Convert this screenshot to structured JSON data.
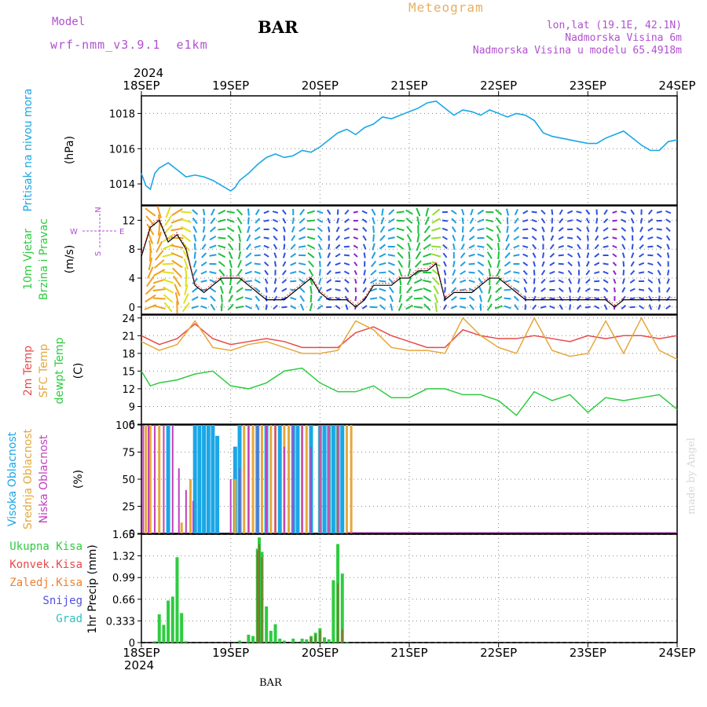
{
  "header": {
    "model_label": "Model",
    "model_name": "wrf-nmm_v3.9.1  e1km",
    "station": "BAR",
    "title": "Meteogram",
    "coords": "lon,lat (19.1E, 42.1N)",
    "elevation": "Nadmorska Visina 6m",
    "model_elevation": "Nadmorska Visina u modelu 65.4918m",
    "year": "2024",
    "footer_station": "BAR",
    "watermark": "made by Angel"
  },
  "colors": {
    "pressure": "#1aa7e6",
    "t2m": "#e84a4a",
    "sfc": "#e6a83a",
    "dewpt": "#2ecc40",
    "high_cloud": "#1aa7e6",
    "mid_cloud": "#e6a83a",
    "low_cloud": "#c040c0",
    "precip_total": "#2ecc40",
    "precip_conv": "#e84a4a",
    "header_purple": "#b050d0",
    "title_orange": "#e6b060",
    "wind_label": "#2ecc40"
  },
  "chart_data": [
    {
      "type": "line",
      "panel": "pressure",
      "ylabel_name": "Pritisak na nivou mora",
      "ylabel_unit": "(hPa)",
      "x_ticks": [
        "18SEP",
        "19SEP",
        "20SEP",
        "21SEP",
        "22SEP",
        "23SEP",
        "24SEP"
      ],
      "ylim": [
        1012.8,
        1019.0
      ],
      "yticks": [
        1014,
        1016,
        1018
      ],
      "grid": true,
      "series": [
        {
          "name": "Pritisak na nivou mora",
          "x_days": [
            0,
            0.05,
            0.1,
            0.15,
            0.2,
            0.3,
            0.4,
            0.5,
            0.6,
            0.7,
            0.8,
            0.9,
            1.0,
            1.05,
            1.1,
            1.2,
            1.3,
            1.4,
            1.5,
            1.6,
            1.7,
            1.8,
            1.9,
            2.0,
            2.1,
            2.2,
            2.3,
            2.4,
            2.5,
            2.6,
            2.7,
            2.8,
            2.9,
            3.0,
            3.1,
            3.2,
            3.3,
            3.4,
            3.5,
            3.6,
            3.7,
            3.8,
            3.9,
            4.0,
            4.1,
            4.2,
            4.3,
            4.4,
            4.5,
            4.6,
            4.7,
            4.8,
            4.9,
            5.0,
            5.1,
            5.2,
            5.3,
            5.4,
            5.5,
            5.6,
            5.7,
            5.8,
            5.9,
            6.0
          ],
          "values": [
            1014.6,
            1013.9,
            1013.7,
            1014.6,
            1014.9,
            1015.2,
            1014.8,
            1014.4,
            1014.5,
            1014.4,
            1014.2,
            1013.9,
            1013.6,
            1013.8,
            1014.2,
            1014.6,
            1015.1,
            1015.5,
            1015.7,
            1015.5,
            1015.6,
            1015.9,
            1015.8,
            1016.1,
            1016.5,
            1016.9,
            1017.1,
            1016.8,
            1017.2,
            1017.4,
            1017.8,
            1017.7,
            1017.9,
            1018.1,
            1018.3,
            1018.6,
            1018.7,
            1018.3,
            1017.9,
            1018.2,
            1018.1,
            1017.9,
            1018.2,
            1018.0,
            1017.8,
            1018.0,
            1017.9,
            1017.6,
            1016.9,
            1016.7,
            1016.6,
            1016.5,
            1016.4,
            1016.3,
            1016.3,
            1016.6,
            1016.8,
            1017.0,
            1016.6,
            1016.2,
            1015.9,
            1015.9,
            1016.4,
            1016.5
          ]
        }
      ]
    },
    {
      "type": "scatter",
      "panel": "wind",
      "ylabel_name": "10m Vjetar Brzina i Pravac",
      "ylabel_unit": "(m/s)",
      "compass": {
        "n": "N",
        "s": "S",
        "e": "E",
        "w": "W"
      },
      "ylim": [
        -1,
        14
      ],
      "yticks": [
        0,
        4,
        8,
        12
      ],
      "grid": true,
      "series": [
        {
          "name": "speed",
          "x_days": [
            0,
            0.1,
            0.2,
            0.3,
            0.4,
            0.5,
            0.6,
            0.7,
            0.8,
            0.9,
            1.0,
            1.1,
            1.2,
            1.3,
            1.4,
            1.5,
            1.6,
            1.7,
            1.8,
            1.9,
            2.0,
            2.1,
            2.2,
            2.3,
            2.4,
            2.5,
            2.6,
            2.7,
            2.8,
            2.9,
            3.0,
            3.1,
            3.2,
            3.3,
            3.4,
            3.5,
            3.6,
            3.7,
            3.8,
            3.9,
            4.0,
            4.1,
            4.2,
            4.3,
            4.4,
            4.5,
            4.6,
            4.7,
            4.8,
            4.9,
            5.0,
            5.1,
            5.2,
            5.3,
            5.4,
            5.5,
            5.6,
            5.7,
            5.8,
            5.9,
            6.0
          ],
          "values": [
            7,
            11,
            12,
            9,
            10,
            8,
            3,
            2,
            3,
            4,
            4,
            4,
            3,
            2,
            1,
            1,
            1,
            2,
            3,
            4,
            2,
            1,
            1,
            1,
            0,
            1,
            3,
            3,
            3,
            4,
            4,
            5,
            5,
            6,
            1,
            2,
            2,
            2,
            3,
            4,
            4,
            3,
            2,
            1,
            1,
            1,
            1,
            1,
            1,
            1,
            1,
            1,
            1,
            0,
            1,
            1,
            1,
            1,
            1,
            1,
            1
          ]
        }
      ]
    },
    {
      "type": "line",
      "panel": "temperature",
      "ylabel_t2m": "2m Temp",
      "ylabel_sfc": "SFC Temp",
      "ylabel_dew": "dewpt Temp",
      "ylabel_unit": "(C)",
      "ylim": [
        6,
        24.5
      ],
      "yticks": [
        6,
        9,
        12,
        15,
        18,
        21,
        24
      ],
      "grid": true,
      "series": [
        {
          "name": "2m Temp",
          "x_days": [
            0,
            0.2,
            0.4,
            0.6,
            0.8,
            1.0,
            1.2,
            1.4,
            1.6,
            1.8,
            2.0,
            2.2,
            2.4,
            2.6,
            2.8,
            3.0,
            3.2,
            3.4,
            3.6,
            3.8,
            4.0,
            4.2,
            4.4,
            4.6,
            4.8,
            5.0,
            5.2,
            5.4,
            5.6,
            5.8,
            6.0
          ],
          "values": [
            21,
            19.5,
            20.5,
            23,
            20.5,
            19.5,
            20,
            20.5,
            20,
            19,
            19,
            19,
            21.5,
            22.5,
            21,
            20,
            19,
            19,
            22,
            21,
            20.5,
            20.5,
            21,
            20.5,
            20,
            21,
            20.5,
            21,
            21,
            20.5,
            21
          ]
        },
        {
          "name": "SFC Temp",
          "x_days": [
            0,
            0.2,
            0.4,
            0.6,
            0.8,
            1.0,
            1.2,
            1.4,
            1.6,
            1.8,
            2.0,
            2.2,
            2.4,
            2.6,
            2.8,
            3.0,
            3.2,
            3.4,
            3.6,
            3.8,
            4.0,
            4.2,
            4.4,
            4.6,
            4.8,
            5.0,
            5.2,
            5.4,
            5.6,
            5.8,
            6.0
          ],
          "values": [
            20,
            18.5,
            19.5,
            23.5,
            19,
            18.5,
            19.5,
            20,
            19,
            18,
            18,
            18.5,
            23.5,
            22,
            19,
            18.5,
            18.5,
            18,
            24,
            21,
            19,
            18,
            24,
            18.5,
            17.5,
            18,
            23.5,
            18,
            24,
            18.5,
            17
          ]
        },
        {
          "name": "dewpt Temp",
          "x_days": [
            0,
            0.1,
            0.2,
            0.4,
            0.6,
            0.8,
            1.0,
            1.2,
            1.4,
            1.6,
            1.8,
            2.0,
            2.2,
            2.4,
            2.6,
            2.8,
            3.0,
            3.2,
            3.4,
            3.6,
            3.8,
            4.0,
            4.2,
            4.4,
            4.6,
            4.8,
            5.0,
            5.2,
            5.4,
            5.6,
            5.8,
            6.0
          ],
          "values": [
            15,
            12.5,
            13,
            13.5,
            14.5,
            15,
            12.5,
            12,
            13,
            15,
            15.5,
            13,
            11.5,
            11.5,
            12.5,
            10.5,
            10.5,
            12,
            12,
            11,
            11,
            10,
            7.5,
            11.5,
            10,
            11,
            8,
            10.5,
            10,
            10.5,
            11,
            8.5
          ]
        }
      ]
    },
    {
      "type": "bar",
      "panel": "cloud",
      "ylabel_high": "Visoka Oblacnost",
      "ylabel_mid": "Srednja Oblacnost",
      "ylabel_low": "Niska Oblacnost",
      "ylabel_unit": "(%)",
      "ylim": [
        0,
        100
      ],
      "yticks": [
        0,
        25,
        50,
        75,
        100
      ],
      "grid": true,
      "series": [
        {
          "name": "Visoka Oblacnost",
          "x_days": [
            0.3,
            0.6,
            0.65,
            0.7,
            0.75,
            0.8,
            0.85,
            1.05,
            1.1,
            1.3,
            1.4,
            1.55,
            1.7,
            1.75,
            1.9,
            2.0,
            2.05,
            2.1,
            2.15,
            2.2,
            2.25
          ],
          "values": [
            100,
            100,
            100,
            100,
            100,
            100,
            90,
            80,
            100,
            100,
            100,
            100,
            100,
            100,
            100,
            100,
            100,
            100,
            100,
            100,
            100
          ]
        },
        {
          "name": "Srednja Oblacnost",
          "x_days": [
            0.05,
            0.1,
            0.2,
            0.45,
            0.55,
            1.05,
            1.15,
            1.2,
            1.25,
            1.35,
            1.45,
            1.5,
            1.6,
            1.65,
            1.8,
            1.85,
            2.0,
            2.1,
            2.2,
            2.3,
            2.35
          ],
          "values": [
            100,
            100,
            100,
            10,
            50,
            50,
            100,
            100,
            100,
            100,
            100,
            100,
            100,
            100,
            100,
            100,
            100,
            100,
            100,
            100,
            100
          ]
        },
        {
          "name": "Niska Oblacnost",
          "x_days": [
            0.02,
            0.08,
            0.15,
            0.25,
            0.35,
            0.42,
            0.5,
            0.58,
            1.0,
            1.1,
            1.2,
            1.3,
            1.4,
            1.5,
            1.6,
            1.7,
            1.8,
            1.9,
            2.0,
            2.1,
            2.2
          ],
          "values": [
            100,
            100,
            100,
            100,
            100,
            60,
            40,
            30,
            50,
            60,
            100,
            100,
            100,
            100,
            80,
            100,
            100,
            80,
            100,
            100,
            100
          ]
        }
      ]
    },
    {
      "type": "bar",
      "panel": "precip",
      "ylabel_unit": "1hr Precip (mm)",
      "legend": [
        "Ukupna Kisa",
        "Konvek.Kisa",
        "Zaledj.Kisa",
        "Snijeg",
        "Grad"
      ],
      "legend_colors": [
        "#2ecc40",
        "#e84a4a",
        "#f08030",
        "#5050e0",
        "#30c0c0"
      ],
      "ylim": [
        0,
        1.65
      ],
      "yticks": [
        0,
        0.33,
        0.66,
        0.99,
        1.32,
        1.65
      ],
      "ytick_labels": [
        "0",
        "0.333",
        "0.66",
        "0.99",
        "1.32",
        "1.65"
      ],
      "grid": true,
      "series": [
        {
          "name": "Ukupna Kisa",
          "x_days": [
            0.15,
            0.2,
            0.25,
            0.3,
            0.35,
            0.4,
            0.45,
            0.5,
            1.1,
            1.2,
            1.25,
            1.3,
            1.32,
            1.35,
            1.4,
            1.45,
            1.5,
            1.55,
            1.6,
            1.7,
            1.8,
            1.85,
            1.9,
            1.95,
            2.0,
            2.05,
            2.1,
            2.15,
            2.2,
            2.25,
            2.3
          ],
          "values": [
            0.02,
            0.43,
            0.27,
            0.64,
            0.7,
            1.3,
            0.45,
            0.02,
            0.03,
            0.12,
            0.1,
            1.43,
            1.6,
            1.38,
            0.55,
            0.18,
            0.28,
            0.06,
            0.03,
            0.06,
            0.06,
            0.05,
            0.1,
            0.15,
            0.22,
            0.08,
            0.05,
            0.95,
            1.5,
            1.05,
            0.01
          ]
        },
        {
          "name": "Konvek.Kisa",
          "x_days": [
            1.3,
            1.32,
            1.35,
            1.9,
            1.95,
            2.0,
            2.2,
            2.25
          ],
          "values": [
            1.4,
            1.5,
            1.3,
            0.08,
            0.12,
            0.18,
            0.9,
            0.2
          ]
        }
      ]
    }
  ]
}
